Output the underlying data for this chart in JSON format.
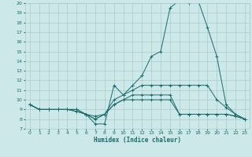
{
  "xlabel": "Humidex (Indice chaleur)",
  "background_color": "#cce8e8",
  "grid_color": "#aacccc",
  "line_color": "#1a6b6b",
  "xlim": [
    -0.5,
    23.5
  ],
  "ylim": [
    7,
    20
  ],
  "xticks": [
    0,
    1,
    2,
    3,
    4,
    5,
    6,
    7,
    8,
    9,
    10,
    11,
    12,
    13,
    14,
    15,
    16,
    17,
    18,
    19,
    20,
    21,
    22,
    23
  ],
  "yticks": [
    7,
    8,
    9,
    10,
    11,
    12,
    13,
    14,
    15,
    16,
    17,
    18,
    19,
    20
  ],
  "curves": [
    {
      "x": [
        0,
        1,
        2,
        3,
        4,
        5,
        6,
        7,
        8,
        9,
        10,
        11,
        12,
        13,
        14,
        15,
        16,
        17,
        18,
        19,
        20,
        21,
        22,
        23
      ],
      "y": [
        9.5,
        9.0,
        9.0,
        9.0,
        9.0,
        9.0,
        8.5,
        7.5,
        7.5,
        11.5,
        10.5,
        11.5,
        12.5,
        14.5,
        15.0,
        19.5,
        20.3,
        20.0,
        20.3,
        17.5,
        14.5,
        9.5,
        8.5,
        8.0
      ]
    },
    {
      "x": [
        0,
        1,
        2,
        3,
        4,
        5,
        6,
        7,
        8,
        9,
        10,
        11,
        12,
        13,
        14,
        15,
        16,
        17,
        18,
        19,
        20,
        21,
        22,
        23
      ],
      "y": [
        9.5,
        9.0,
        9.0,
        9.0,
        9.0,
        9.0,
        8.5,
        8.3,
        8.5,
        10.0,
        10.5,
        11.0,
        11.5,
        11.5,
        11.5,
        11.5,
        11.5,
        11.5,
        11.5,
        11.5,
        10.0,
        9.2,
        8.5,
        8.0
      ]
    },
    {
      "x": [
        0,
        1,
        2,
        3,
        4,
        5,
        6,
        7,
        8,
        9,
        10,
        11,
        12,
        13,
        14,
        15,
        16,
        17,
        18,
        19,
        20,
        21,
        22,
        23
      ],
      "y": [
        9.5,
        9.0,
        9.0,
        9.0,
        9.0,
        8.8,
        8.5,
        8.0,
        8.5,
        9.5,
        10.0,
        10.5,
        10.5,
        10.5,
        10.5,
        10.5,
        8.5,
        8.5,
        8.5,
        8.5,
        8.5,
        8.5,
        8.3,
        8.0
      ]
    },
    {
      "x": [
        0,
        1,
        2,
        3,
        4,
        5,
        6,
        7,
        8,
        9,
        10,
        11,
        12,
        13,
        14,
        15,
        16,
        17,
        18,
        19,
        20,
        21,
        22,
        23
      ],
      "y": [
        9.5,
        9.0,
        9.0,
        9.0,
        9.0,
        8.8,
        8.5,
        8.0,
        8.5,
        9.5,
        10.0,
        10.0,
        10.0,
        10.0,
        10.0,
        10.0,
        8.5,
        8.5,
        8.5,
        8.5,
        8.5,
        8.5,
        8.3,
        8.0
      ]
    }
  ]
}
